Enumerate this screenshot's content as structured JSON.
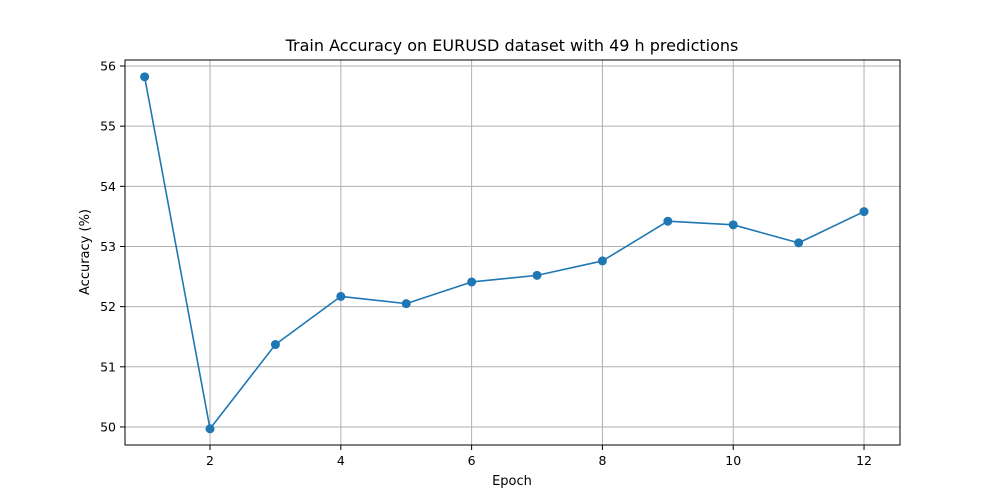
{
  "chart_data": {
    "type": "line",
    "title": "Train Accuracy on EURUSD dataset with 49 h predictions",
    "xlabel": "Epoch",
    "ylabel": "Accuracy (%)",
    "xlim": [
      0.7,
      12.55
    ],
    "ylim": [
      49.7,
      56.1
    ],
    "xticks": [
      2,
      4,
      6,
      8,
      10,
      12
    ],
    "yticks": [
      50,
      51,
      52,
      53,
      54,
      55,
      56
    ],
    "grid": true,
    "series": [
      {
        "marker": "circle",
        "color": "#1f77b4",
        "x": [
          1,
          2,
          3,
          4,
          5,
          6,
          7,
          8,
          9,
          10,
          11,
          12
        ],
        "y": [
          55.82,
          49.97,
          51.37,
          52.17,
          52.05,
          52.41,
          52.52,
          52.76,
          53.42,
          53.36,
          53.06,
          53.58
        ]
      }
    ]
  }
}
